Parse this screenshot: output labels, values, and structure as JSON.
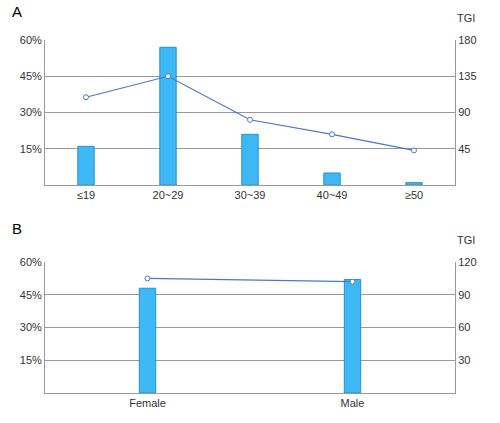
{
  "chart_data": [
    {
      "type": "bar",
      "title": "A",
      "categories": [
        "≤19",
        "20~29",
        "30~39",
        "40~49",
        "≥50"
      ],
      "series": [
        {
          "type": "bar",
          "color": "#3db9f5",
          "values": [
            16,
            57,
            21,
            5,
            1
          ]
        },
        {
          "type": "line",
          "axis": "y2",
          "color": "#4a78c2",
          "marker": "circle-open",
          "values": [
            109,
            135,
            81,
            63,
            43
          ]
        }
      ],
      "ylim": [
        0,
        60
      ],
      "yticks": [
        {
          "value": 15,
          "label": "15%"
        },
        {
          "value": 30,
          "label": "30%"
        },
        {
          "value": 45,
          "label": "45%"
        },
        {
          "value": 60,
          "label": "60%"
        }
      ],
      "y2lim": [
        0,
        180
      ],
      "y2ticks": [
        45,
        90,
        135,
        180
      ],
      "y2label": "TGI",
      "grid": true
    },
    {
      "type": "bar",
      "title": "B",
      "categories": [
        "Female",
        "Male"
      ],
      "series": [
        {
          "type": "bar",
          "color": "#3db9f5",
          "values": [
            48,
            52
          ]
        },
        {
          "type": "line",
          "axis": "y2",
          "color": "#4a78c2",
          "marker": "circle-open",
          "values": [
            105,
            102
          ]
        }
      ],
      "ylim": [
        0,
        60
      ],
      "yticks": [
        {
          "value": 15,
          "label": "15%"
        },
        {
          "value": 30,
          "label": "30%"
        },
        {
          "value": 45,
          "label": "45%"
        },
        {
          "value": 60,
          "label": "60%"
        }
      ],
      "y2lim": [
        0,
        120
      ],
      "y2ticks": [
        30,
        60,
        90,
        120
      ],
      "y2label": "TGI",
      "grid": true
    }
  ]
}
